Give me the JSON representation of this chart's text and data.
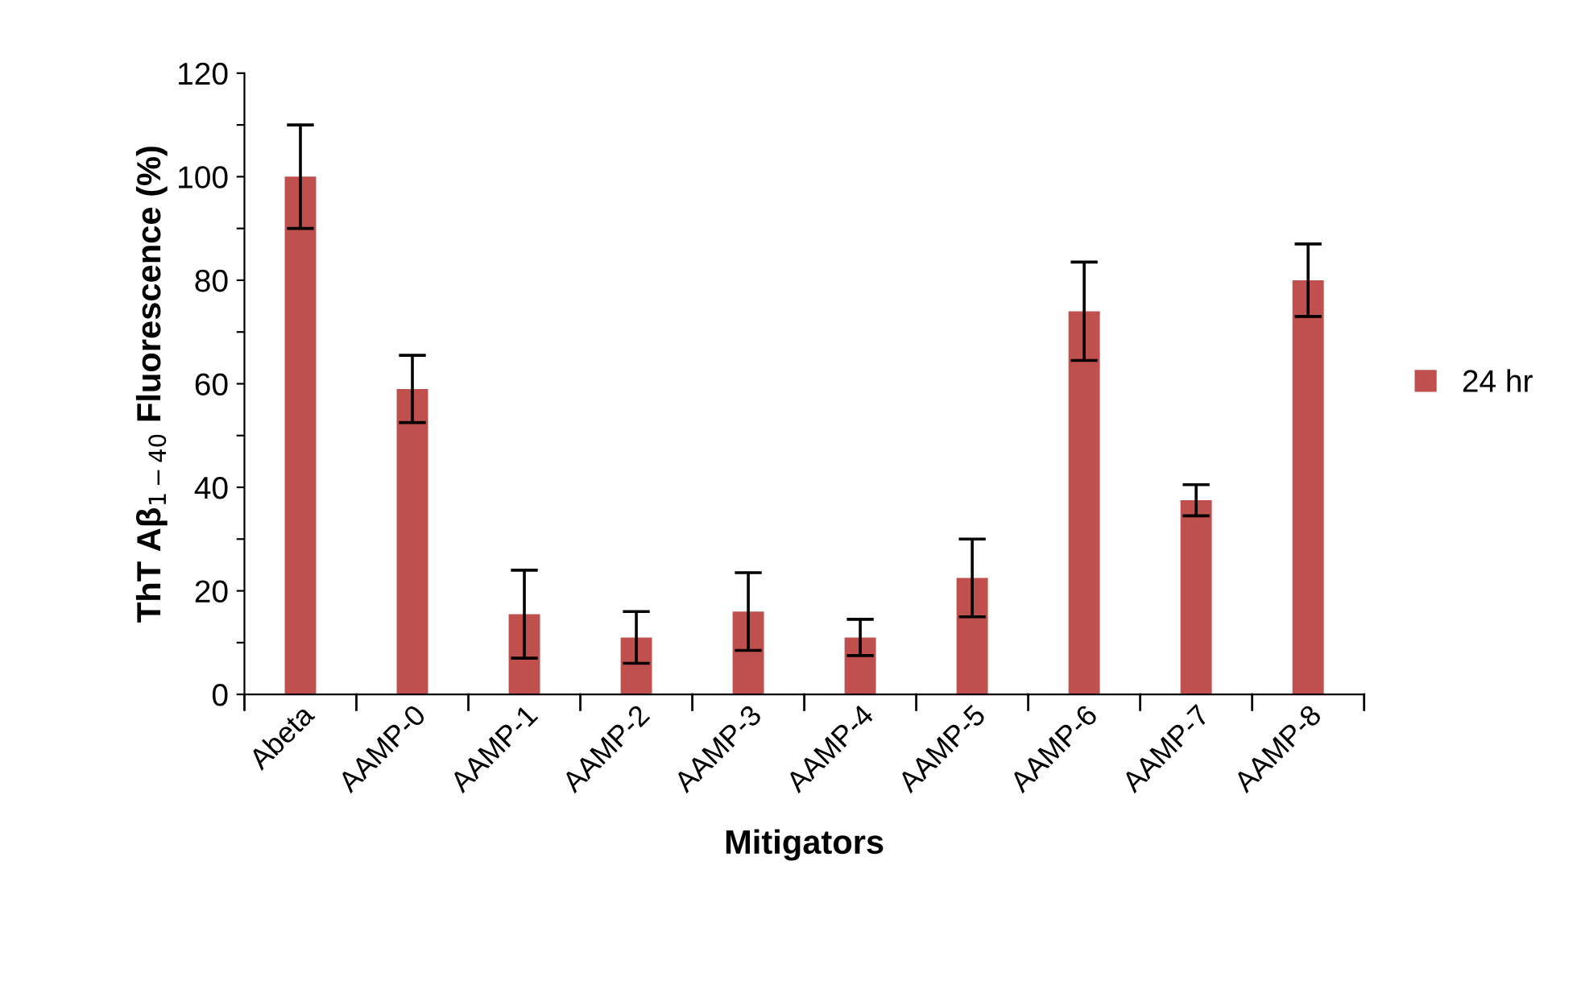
{
  "chart_data": {
    "type": "bar",
    "xlabel": "Mitigators",
    "ylabel": "ThT Aβ$_{1−40}$ Fluorescence (%)",
    "categories": [
      "Abeta",
      "AAMP-0",
      "AAMP-1",
      "AAMP-2",
      "AAMP-3",
      "AAMP-4",
      "AAMP-5",
      "AAMP-6",
      "AAMP-7",
      "AAMP-8"
    ],
    "series": [
      {
        "name": "24 hr",
        "color": "#c0504d",
        "values": [
          100,
          59,
          15.5,
          11,
          16,
          11,
          22.5,
          74,
          37.5,
          80
        ],
        "errors": [
          10,
          6.5,
          8.5,
          5,
          7.5,
          3.5,
          7.5,
          9.5,
          3,
          7
        ]
      }
    ],
    "ylim": [
      0,
      120
    ],
    "yticks": [
      0,
      {
        "value": 10,
        "label": null
      },
      20,
      {
        "value": 30,
        "label": null
      },
      40,
      {
        "value": 50,
        "label": null
      },
      60,
      {
        "value": 70,
        "label": null
      },
      80,
      {
        "value": 90,
        "label": null
      },
      100,
      {
        "value": 110,
        "label": null
      },
      120
    ],
    "grid": false,
    "legend": "right"
  }
}
